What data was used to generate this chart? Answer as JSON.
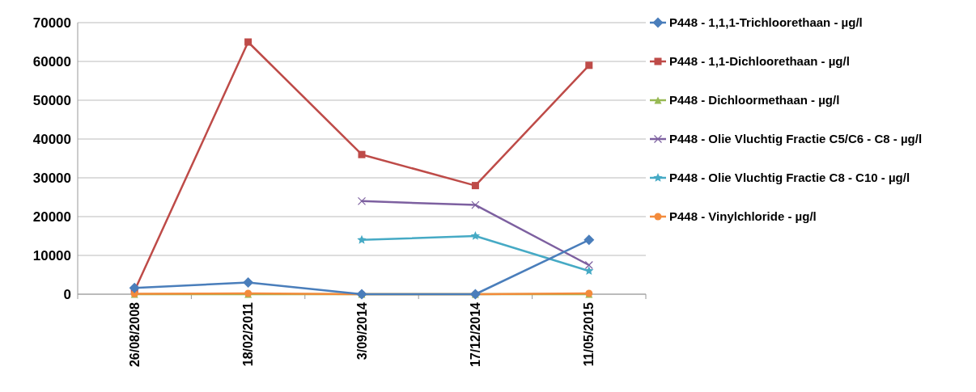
{
  "chart_data": {
    "type": "line",
    "categories": [
      "26/08/2008",
      "18/02/2011",
      "3/09/2014",
      "17/12/2014",
      "11/05/2015"
    ],
    "ylim": [
      0,
      70000
    ],
    "yticks": [
      0,
      10000,
      20000,
      30000,
      40000,
      50000,
      60000,
      70000
    ],
    "grid": "y",
    "legend": "right",
    "series": [
      {
        "name": "P448 - 1,1,1-Trichloorethaan - µg/l",
        "color": "#4a7ebb",
        "marker": "diamond",
        "values": [
          1600,
          3000,
          0,
          0,
          14000
        ]
      },
      {
        "name": "P448 - 1,1-Dichloorethaan - µg/l",
        "color": "#be4b48",
        "marker": "square",
        "values": [
          900,
          65000,
          36000,
          28000,
          59000
        ]
      },
      {
        "name": "P448 - Dichloormethaan - µg/l",
        "color": "#98b954",
        "marker": "triangle",
        "values": [
          0,
          0,
          0,
          0,
          0
        ]
      },
      {
        "name": "P448 - Olie Vluchtig Fractie C5/C6 - C8 - µg/l",
        "color": "#7d60a0",
        "marker": "cross",
        "values": [
          null,
          null,
          24000,
          23000,
          7500
        ]
      },
      {
        "name": "P448 - Olie Vluchtig Fractie C8 - C10 - µg/l",
        "color": "#46aac5",
        "marker": "star",
        "values": [
          null,
          null,
          14000,
          15000,
          6000
        ]
      },
      {
        "name": "P448 - Vinylchloride - µg/l",
        "color": "#f38b3c",
        "marker": "circle",
        "values": [
          100,
          200,
          0,
          0,
          200
        ]
      }
    ]
  }
}
